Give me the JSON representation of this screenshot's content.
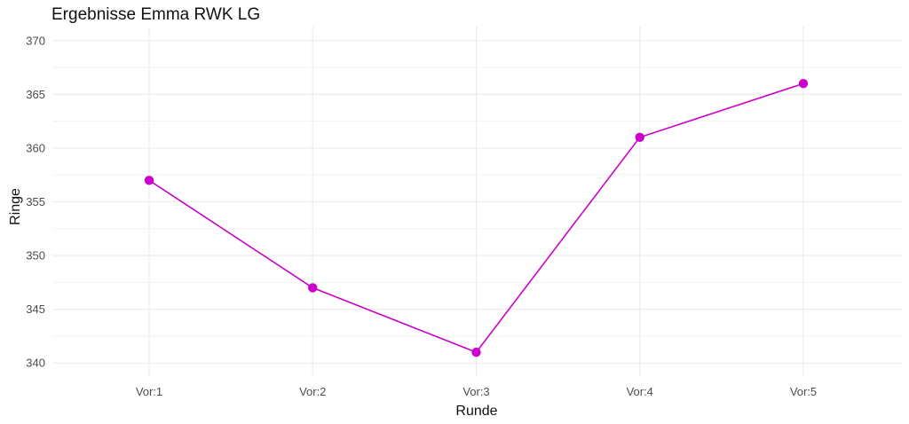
{
  "chart_data": {
    "type": "line",
    "title": "Ergebnisse Emma RWK LG",
    "xlabel": "Runde",
    "ylabel": "Ringe",
    "categories": [
      "Vor:1",
      "Vor:2",
      "Vor:3",
      "Vor:4",
      "Vor:5"
    ],
    "series": [
      {
        "values": [
          357,
          347,
          341,
          361,
          366
        ]
      }
    ],
    "ylim": [
      338.7,
      371.3
    ],
    "yticks": [
      340,
      345,
      350,
      355,
      360,
      365,
      370
    ],
    "grid": true,
    "legend": "none",
    "line_color": "#CC00CC",
    "grid_color": "#EBEBEB",
    "text_color": "#4D4D4D"
  }
}
